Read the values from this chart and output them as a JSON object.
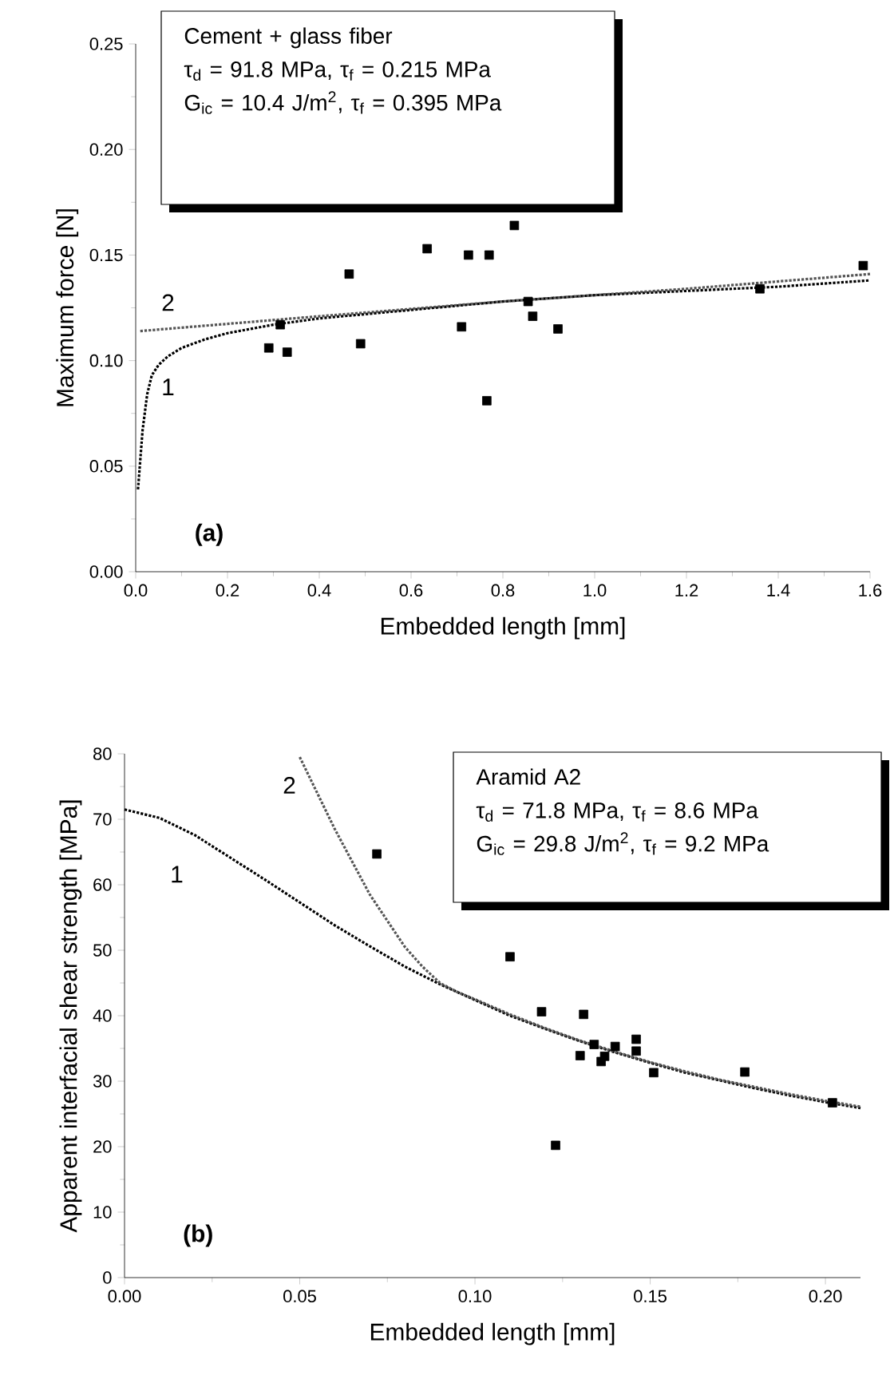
{
  "chart_data": [
    {
      "type": "scatter",
      "subtitle": "(a)",
      "xlabel": "Embedded length [mm]",
      "ylabel": "Maximum force [N]",
      "xlim": [
        0,
        1.6
      ],
      "ylim": [
        0,
        0.25
      ],
      "xticks": [
        {
          "value": 0,
          "label": "0.0"
        },
        {
          "value": 0.2,
          "label": "0.2"
        },
        {
          "value": 0.4,
          "label": "0.4"
        },
        {
          "value": 0.6,
          "label": "0.6"
        },
        {
          "value": 0.8,
          "label": "0.8"
        },
        {
          "value": 1.0,
          "label": "1.0"
        },
        {
          "value": 1.2,
          "label": "1.2"
        },
        {
          "value": 1.4,
          "label": "1.4"
        },
        {
          "value": 1.6,
          "label": "1.6"
        }
      ],
      "yticks": [
        {
          "value": 0,
          "label": "0.00"
        },
        {
          "value": 0.05,
          "label": "0.05"
        },
        {
          "value": 0.1,
          "label": "0.10"
        },
        {
          "value": 0.15,
          "label": "0.15"
        },
        {
          "value": 0.2,
          "label": "0.20"
        },
        {
          "value": 0.25,
          "label": "0.25"
        }
      ],
      "annotations": [
        "Cement + glass fiber",
        "τ$_{d}$ = 91.8 MPa, τ$_{f}$ = 0.215 MPa",
        "G$_{ic}$ = 10.4 J/m$^{2}$, τ$_{f}$ = 0.395 MPa",
        "1",
        "2"
      ],
      "series": [
        {
          "marker": "square",
          "color": "#000000",
          "x": [
            0.29,
            0.315,
            0.33,
            0.465,
            0.49,
            0.635,
            0.71,
            0.725,
            0.765,
            0.77,
            0.825,
            0.855,
            0.865,
            0.92,
            1.36,
            1.585
          ],
          "values": [
            0.106,
            0.117,
            0.104,
            0.141,
            0.108,
            0.153,
            0.116,
            0.15,
            0.081,
            0.15,
            0.164,
            0.128,
            0.121,
            0.115,
            0.134,
            0.145
          ]
        },
        {
          "type": "line",
          "line_style": "dotted",
          "color": "#000000",
          "x": [
            0.005,
            0.015,
            0.025,
            0.035,
            0.05,
            0.07,
            0.1,
            0.15,
            0.2,
            0.3,
            0.4,
            0.6,
            0.8,
            1.0,
            1.2,
            1.4,
            1.6
          ],
          "values": [
            0.039,
            0.067,
            0.084,
            0.093,
            0.098,
            0.102,
            0.106,
            0.11,
            0.113,
            0.117,
            0.12,
            0.124,
            0.128,
            0.131,
            0.133,
            0.135,
            0.138
          ]
        },
        {
          "type": "line",
          "line_style": "dotted",
          "color": "#555555",
          "x": [
            0.01,
            0.4,
            0.8,
            1.2,
            1.6
          ],
          "values": [
            0.114,
            0.121,
            0.128,
            0.134,
            0.141
          ]
        }
      ]
    },
    {
      "type": "scatter",
      "subtitle": "(b)",
      "xlabel": "Embedded length [mm]",
      "ylabel": "Apparent  interfacial shear strength [MPa]",
      "xlim": [
        0,
        0.21
      ],
      "ylim": [
        0,
        80
      ],
      "xticks": [
        {
          "value": 0,
          "label": "0.00"
        },
        {
          "value": 0.05,
          "label": "0.05"
        },
        {
          "value": 0.1,
          "label": "0.10"
        },
        {
          "value": 0.15,
          "label": "0.15"
        },
        {
          "value": 0.2,
          "label": "0.20"
        }
      ],
      "yticks": [
        0,
        10,
        20,
        30,
        40,
        50,
        60,
        70,
        80
      ],
      "annotations": [
        "Aramid A2",
        "τ$_{d}$ = 71.8 MPa, τ$_{f}$ = 8.6 MPa",
        "G$_{ic}$ = 29.8 J/m$^{2}$, τ$_{f}$ = 9.2 MPa",
        "1",
        "2"
      ],
      "series": [
        {
          "marker": "square",
          "color": "#000000",
          "x": [
            0.072,
            0.11,
            0.119,
            0.123,
            0.13,
            0.131,
            0.134,
            0.136,
            0.137,
            0.14,
            0.146,
            0.146,
            0.151,
            0.177,
            0.202
          ],
          "values": [
            64.7,
            49,
            40.6,
            20.2,
            33.9,
            40.2,
            35.6,
            33,
            33.8,
            35.3,
            36.4,
            34.6,
            31.3,
            31.4,
            26.7
          ]
        },
        {
          "type": "line",
          "line_style": "dotted",
          "color": "#000000",
          "x": [
            0.0,
            0.01,
            0.02,
            0.03,
            0.04,
            0.05,
            0.06,
            0.07,
            0.08,
            0.09,
            0.1,
            0.11,
            0.12,
            0.13,
            0.14,
            0.15,
            0.16,
            0.17,
            0.18,
            0.19,
            0.2,
            0.21
          ],
          "values": [
            71.5,
            70.2,
            67.6,
            64.2,
            60.8,
            57.3,
            53.8,
            50.6,
            47.5,
            44.8,
            42.4,
            40.0,
            38.0,
            36.1,
            34.4,
            32.8,
            31.3,
            30.1,
            28.9,
            27.8,
            26.8,
            25.9
          ]
        },
        {
          "type": "line",
          "line_style": "dotted",
          "color": "#555555",
          "x": [
            0.05,
            0.055,
            0.06,
            0.065,
            0.07,
            0.075,
            0.08,
            0.085,
            0.09,
            0.095,
            0.1,
            0.11,
            0.12,
            0.13,
            0.14,
            0.15,
            0.16,
            0.17,
            0.18,
            0.19,
            0.2,
            0.21
          ],
          "values": [
            79.5,
            74,
            68.5,
            63.5,
            58.5,
            54.5,
            50.5,
            47.5,
            45,
            43.6,
            42.5,
            40.2,
            38.1,
            36.2,
            34.5,
            32.9,
            31.5,
            30.2,
            29.1,
            28.0,
            27.0,
            26.1
          ]
        }
      ]
    }
  ]
}
